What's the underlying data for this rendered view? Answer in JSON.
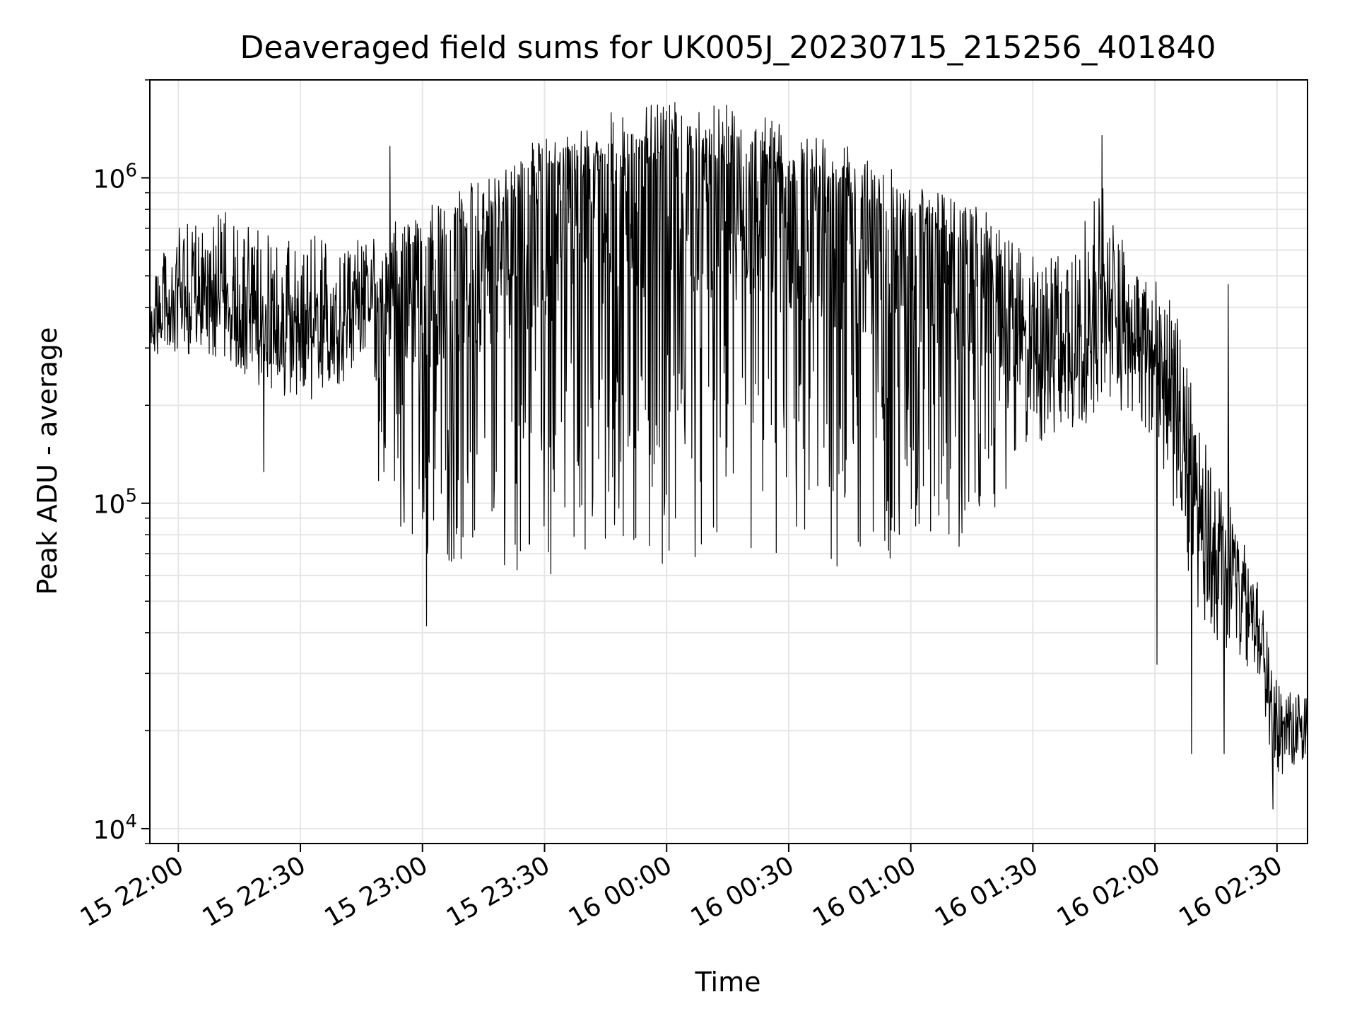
{
  "chart_data": {
    "type": "line",
    "title": "Deaveraged field sums for UK005J_20230715_215256_401840",
    "xlabel": "Time",
    "ylabel": "Peak ADU - average",
    "yscale": "log",
    "ylim": [
      9000,
      2000000
    ],
    "xlim": [
      "2023-07-15T21:53:00",
      "2023-07-16T02:37:30"
    ],
    "grid": true,
    "line_color": "#000000",
    "grid_color": "#e6e6e6",
    "x_ticks": [
      {
        "t": "2023-07-15T22:00:00",
        "label": "15 22:00"
      },
      {
        "t": "2023-07-15T22:30:00",
        "label": "15 22:30"
      },
      {
        "t": "2023-07-15T23:00:00",
        "label": "15 23:00"
      },
      {
        "t": "2023-07-15T23:30:00",
        "label": "15 23:30"
      },
      {
        "t": "2023-07-16T00:00:00",
        "label": "16 00:00"
      },
      {
        "t": "2023-07-16T00:30:00",
        "label": "16 00:30"
      },
      {
        "t": "2023-07-16T01:00:00",
        "label": "16 01:00"
      },
      {
        "t": "2023-07-16T01:30:00",
        "label": "16 01:30"
      },
      {
        "t": "2023-07-16T02:00:00",
        "label": "16 02:00"
      },
      {
        "t": "2023-07-16T02:30:00",
        "label": "16 02:30"
      }
    ],
    "y_ticks": [
      {
        "value": 10000,
        "base": "10",
        "exp": "4"
      },
      {
        "value": 100000,
        "base": "10",
        "exp": "5"
      },
      {
        "value": 1000000,
        "base": "10",
        "exp": "6"
      }
    ],
    "series": [
      {
        "name": "",
        "envelope": [
          {
            "t": "2023-07-15T21:53:00",
            "median": 350000,
            "high": 500000,
            "low": 270000
          },
          {
            "t": "2023-07-15T22:00:00",
            "median": 400000,
            "high": 700000,
            "low": 280000
          },
          {
            "t": "2023-07-15T22:10:00",
            "median": 420000,
            "high": 800000,
            "low": 280000
          },
          {
            "t": "2023-07-15T22:20:00",
            "median": 350000,
            "high": 700000,
            "low": 230000
          },
          {
            "t": "2023-07-15T22:30:00",
            "median": 330000,
            "high": 650000,
            "low": 190000
          },
          {
            "t": "2023-07-15T22:40:00",
            "median": 400000,
            "high": 700000,
            "low": 230000
          },
          {
            "t": "2023-07-15T22:46:00",
            "median": 450000,
            "high": 650000,
            "low": 300000
          },
          {
            "t": "2023-07-15T22:50:00",
            "median": 420000,
            "high": 700000,
            "low": 90000
          },
          {
            "t": "2023-07-15T23:00:00",
            "median": 450000,
            "high": 800000,
            "low": 65000
          },
          {
            "t": "2023-07-15T23:15:00",
            "median": 550000,
            "high": 1050000,
            "low": 65000
          },
          {
            "t": "2023-07-15T23:30:00",
            "median": 700000,
            "high": 1200000,
            "low": 60000
          },
          {
            "t": "2023-07-15T23:45:00",
            "median": 800000,
            "high": 1350000,
            "low": 65000
          },
          {
            "t": "2023-07-16T00:00:00",
            "median": 850000,
            "high": 1450000,
            "low": 65000
          },
          {
            "t": "2023-07-16T00:15:00",
            "median": 850000,
            "high": 1450000,
            "low": 70000
          },
          {
            "t": "2023-07-16T00:30:00",
            "median": 750000,
            "high": 1250000,
            "low": 55000
          },
          {
            "t": "2023-07-16T00:45:00",
            "median": 650000,
            "high": 1100000,
            "low": 60000
          },
          {
            "t": "2023-07-16T01:00:00",
            "median": 550000,
            "high": 950000,
            "low": 70000
          },
          {
            "t": "2023-07-16T01:15:00",
            "median": 450000,
            "high": 850000,
            "low": 70000
          },
          {
            "t": "2023-07-16T01:30:00",
            "median": 300000,
            "high": 600000,
            "low": 150000
          },
          {
            "t": "2023-07-16T01:40:00",
            "median": 300000,
            "high": 600000,
            "low": 160000
          },
          {
            "t": "2023-07-16T01:47:00",
            "median": 400000,
            "high": 1000000,
            "low": 200000
          },
          {
            "t": "2023-07-16T01:55:00",
            "median": 320000,
            "high": 500000,
            "low": 180000
          },
          {
            "t": "2023-07-16T02:00:00",
            "median": 300000,
            "high": 500000,
            "low": 150000
          },
          {
            "t": "2023-07-16T02:05:00",
            "median": 200000,
            "high": 400000,
            "low": 90000
          },
          {
            "t": "2023-07-16T02:10:00",
            "median": 110000,
            "high": 200000,
            "low": 50000
          },
          {
            "t": "2023-07-16T02:15:00",
            "median": 65000,
            "high": 120000,
            "low": 35000
          },
          {
            "t": "2023-07-16T02:20:00",
            "median": 55000,
            "high": 90000,
            "low": 35000
          },
          {
            "t": "2023-07-16T02:25:00",
            "median": 42000,
            "high": 60000,
            "low": 28000
          },
          {
            "t": "2023-07-16T02:30:00",
            "median": 20000,
            "high": 28000,
            "low": 14000
          },
          {
            "t": "2023-07-16T02:37:30",
            "median": 20000,
            "high": 25000,
            "low": 16000
          }
        ],
        "notable_points": [
          {
            "t": "2023-07-15T22:21:00",
            "value": 125000
          },
          {
            "t": "2023-07-15T22:52:00",
            "value": 1250000
          },
          {
            "t": "2023-07-15T23:01:00",
            "value": 42000
          },
          {
            "t": "2023-07-16T01:47:00",
            "value": 1350000
          },
          {
            "t": "2023-07-16T02:00:30",
            "value": 32000
          },
          {
            "t": "2023-07-16T02:09:00",
            "value": 17000
          },
          {
            "t": "2023-07-16T02:17:00",
            "value": 17000
          },
          {
            "t": "2023-07-16T02:18:00",
            "value": 470000
          },
          {
            "t": "2023-07-16T02:29:00",
            "value": 11500
          }
        ]
      }
    ]
  }
}
